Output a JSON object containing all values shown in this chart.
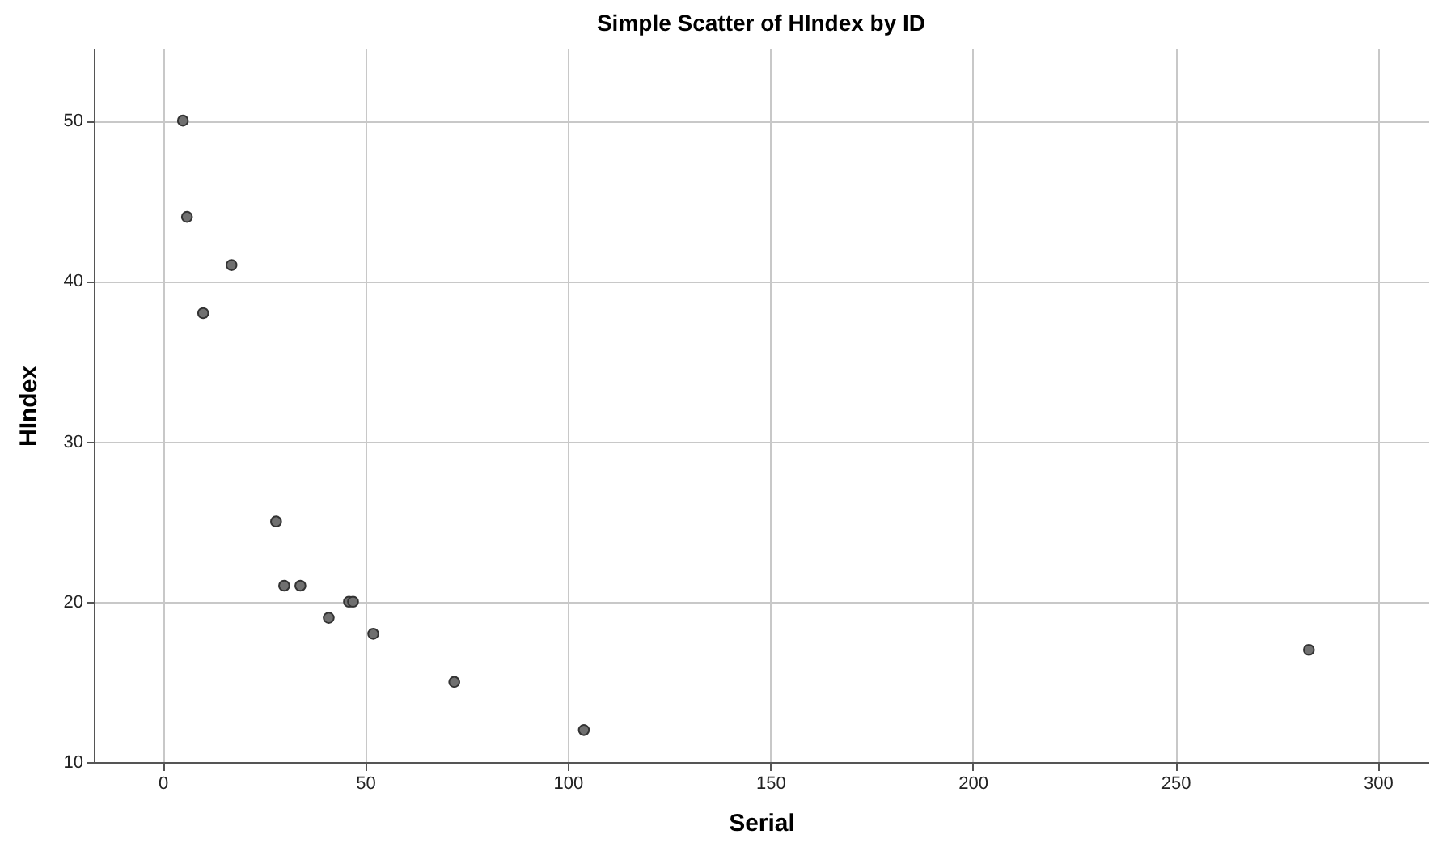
{
  "chart_data": {
    "type": "scatter",
    "title": "Simple Scatter of HIndex by ID",
    "xlabel": "Serial",
    "ylabel": "HIndex",
    "x": [
      5,
      6,
      17,
      10,
      28,
      30,
      34,
      41,
      46,
      47,
      52,
      72,
      104,
      283
    ],
    "series": [
      {
        "color": "#707070",
        "values": [
          50,
          44,
          41,
          38,
          25,
          21,
          21,
          19,
          20,
          20,
          18,
          15,
          12,
          17
        ]
      }
    ],
    "xlim": [
      -17,
      312.5
    ],
    "xticks": [
      0,
      50,
      100,
      150,
      200,
      250,
      300
    ],
    "ylim": [
      10,
      54.5
    ],
    "yticks": [
      10,
      20,
      30,
      40,
      50
    ],
    "grid": true,
    "marker": "circle"
  }
}
